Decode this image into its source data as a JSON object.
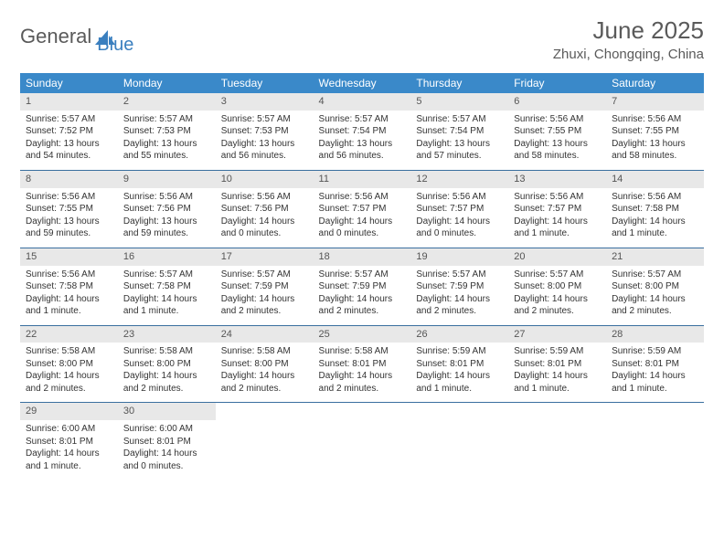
{
  "logo": {
    "text1": "General",
    "text2": "Blue"
  },
  "title": "June 2025",
  "location": "Zhuxi, Chongqing, China",
  "colors": {
    "header_bg": "#3a89c9",
    "header_fg": "#ffffff",
    "daynum_bg": "#e8e8e8",
    "sep": "#3a6f9f",
    "logo_gray": "#5a5a5a",
    "logo_blue": "#3a7fbf"
  },
  "day_names": [
    "Sunday",
    "Monday",
    "Tuesday",
    "Wednesday",
    "Thursday",
    "Friday",
    "Saturday"
  ],
  "weeks": [
    [
      {
        "n": "1",
        "sr": "Sunrise: 5:57 AM",
        "ss": "Sunset: 7:52 PM",
        "dl1": "Daylight: 13 hours",
        "dl2": "and 54 minutes."
      },
      {
        "n": "2",
        "sr": "Sunrise: 5:57 AM",
        "ss": "Sunset: 7:53 PM",
        "dl1": "Daylight: 13 hours",
        "dl2": "and 55 minutes."
      },
      {
        "n": "3",
        "sr": "Sunrise: 5:57 AM",
        "ss": "Sunset: 7:53 PM",
        "dl1": "Daylight: 13 hours",
        "dl2": "and 56 minutes."
      },
      {
        "n": "4",
        "sr": "Sunrise: 5:57 AM",
        "ss": "Sunset: 7:54 PM",
        "dl1": "Daylight: 13 hours",
        "dl2": "and 56 minutes."
      },
      {
        "n": "5",
        "sr": "Sunrise: 5:57 AM",
        "ss": "Sunset: 7:54 PM",
        "dl1": "Daylight: 13 hours",
        "dl2": "and 57 minutes."
      },
      {
        "n": "6",
        "sr": "Sunrise: 5:56 AM",
        "ss": "Sunset: 7:55 PM",
        "dl1": "Daylight: 13 hours",
        "dl2": "and 58 minutes."
      },
      {
        "n": "7",
        "sr": "Sunrise: 5:56 AM",
        "ss": "Sunset: 7:55 PM",
        "dl1": "Daylight: 13 hours",
        "dl2": "and 58 minutes."
      }
    ],
    [
      {
        "n": "8",
        "sr": "Sunrise: 5:56 AM",
        "ss": "Sunset: 7:55 PM",
        "dl1": "Daylight: 13 hours",
        "dl2": "and 59 minutes."
      },
      {
        "n": "9",
        "sr": "Sunrise: 5:56 AM",
        "ss": "Sunset: 7:56 PM",
        "dl1": "Daylight: 13 hours",
        "dl2": "and 59 minutes."
      },
      {
        "n": "10",
        "sr": "Sunrise: 5:56 AM",
        "ss": "Sunset: 7:56 PM",
        "dl1": "Daylight: 14 hours",
        "dl2": "and 0 minutes."
      },
      {
        "n": "11",
        "sr": "Sunrise: 5:56 AM",
        "ss": "Sunset: 7:57 PM",
        "dl1": "Daylight: 14 hours",
        "dl2": "and 0 minutes."
      },
      {
        "n": "12",
        "sr": "Sunrise: 5:56 AM",
        "ss": "Sunset: 7:57 PM",
        "dl1": "Daylight: 14 hours",
        "dl2": "and 0 minutes."
      },
      {
        "n": "13",
        "sr": "Sunrise: 5:56 AM",
        "ss": "Sunset: 7:57 PM",
        "dl1": "Daylight: 14 hours",
        "dl2": "and 1 minute."
      },
      {
        "n": "14",
        "sr": "Sunrise: 5:56 AM",
        "ss": "Sunset: 7:58 PM",
        "dl1": "Daylight: 14 hours",
        "dl2": "and 1 minute."
      }
    ],
    [
      {
        "n": "15",
        "sr": "Sunrise: 5:56 AM",
        "ss": "Sunset: 7:58 PM",
        "dl1": "Daylight: 14 hours",
        "dl2": "and 1 minute."
      },
      {
        "n": "16",
        "sr": "Sunrise: 5:57 AM",
        "ss": "Sunset: 7:58 PM",
        "dl1": "Daylight: 14 hours",
        "dl2": "and 1 minute."
      },
      {
        "n": "17",
        "sr": "Sunrise: 5:57 AM",
        "ss": "Sunset: 7:59 PM",
        "dl1": "Daylight: 14 hours",
        "dl2": "and 2 minutes."
      },
      {
        "n": "18",
        "sr": "Sunrise: 5:57 AM",
        "ss": "Sunset: 7:59 PM",
        "dl1": "Daylight: 14 hours",
        "dl2": "and 2 minutes."
      },
      {
        "n": "19",
        "sr": "Sunrise: 5:57 AM",
        "ss": "Sunset: 7:59 PM",
        "dl1": "Daylight: 14 hours",
        "dl2": "and 2 minutes."
      },
      {
        "n": "20",
        "sr": "Sunrise: 5:57 AM",
        "ss": "Sunset: 8:00 PM",
        "dl1": "Daylight: 14 hours",
        "dl2": "and 2 minutes."
      },
      {
        "n": "21",
        "sr": "Sunrise: 5:57 AM",
        "ss": "Sunset: 8:00 PM",
        "dl1": "Daylight: 14 hours",
        "dl2": "and 2 minutes."
      }
    ],
    [
      {
        "n": "22",
        "sr": "Sunrise: 5:58 AM",
        "ss": "Sunset: 8:00 PM",
        "dl1": "Daylight: 14 hours",
        "dl2": "and 2 minutes."
      },
      {
        "n": "23",
        "sr": "Sunrise: 5:58 AM",
        "ss": "Sunset: 8:00 PM",
        "dl1": "Daylight: 14 hours",
        "dl2": "and 2 minutes."
      },
      {
        "n": "24",
        "sr": "Sunrise: 5:58 AM",
        "ss": "Sunset: 8:00 PM",
        "dl1": "Daylight: 14 hours",
        "dl2": "and 2 minutes."
      },
      {
        "n": "25",
        "sr": "Sunrise: 5:58 AM",
        "ss": "Sunset: 8:01 PM",
        "dl1": "Daylight: 14 hours",
        "dl2": "and 2 minutes."
      },
      {
        "n": "26",
        "sr": "Sunrise: 5:59 AM",
        "ss": "Sunset: 8:01 PM",
        "dl1": "Daylight: 14 hours",
        "dl2": "and 1 minute."
      },
      {
        "n": "27",
        "sr": "Sunrise: 5:59 AM",
        "ss": "Sunset: 8:01 PM",
        "dl1": "Daylight: 14 hours",
        "dl2": "and 1 minute."
      },
      {
        "n": "28",
        "sr": "Sunrise: 5:59 AM",
        "ss": "Sunset: 8:01 PM",
        "dl1": "Daylight: 14 hours",
        "dl2": "and 1 minute."
      }
    ],
    [
      {
        "n": "29",
        "sr": "Sunrise: 6:00 AM",
        "ss": "Sunset: 8:01 PM",
        "dl1": "Daylight: 14 hours",
        "dl2": "and 1 minute."
      },
      {
        "n": "30",
        "sr": "Sunrise: 6:00 AM",
        "ss": "Sunset: 8:01 PM",
        "dl1": "Daylight: 14 hours",
        "dl2": "and 0 minutes."
      },
      null,
      null,
      null,
      null,
      null
    ]
  ]
}
